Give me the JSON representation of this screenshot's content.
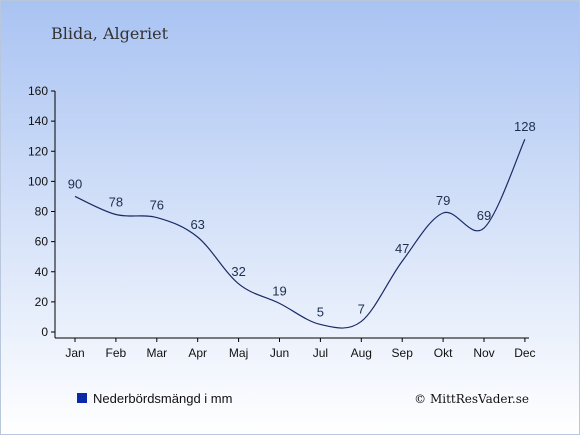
{
  "chart_data": {
    "type": "line",
    "title": "Blida, Algeriet",
    "categories": [
      "Jan",
      "Feb",
      "Mar",
      "Apr",
      "Maj",
      "Jun",
      "Jul",
      "Aug",
      "Sep",
      "Okt",
      "Nov",
      "Dec"
    ],
    "series": [
      {
        "name": "Nederbördsmängd i mm",
        "values": [
          90,
          78,
          76,
          63,
          32,
          19,
          5,
          7,
          47,
          79,
          69,
          128
        ],
        "color": "#1a2b66"
      }
    ],
    "ylim": [
      0,
      160
    ],
    "yticks": [
      0,
      20,
      40,
      60,
      80,
      100,
      120,
      140,
      160
    ],
    "xlabel": "",
    "ylabel": "",
    "grid": false,
    "legend": "bottom-left",
    "legend_marker_color": "#0a2aa8",
    "background_gradient": [
      "#a9c3f2",
      "#ffffff"
    ]
  },
  "credit": "© MittResVader.se"
}
